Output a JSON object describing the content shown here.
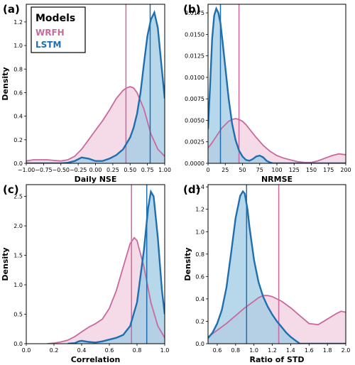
{
  "legend": {
    "title": "Models",
    "items": [
      {
        "label": "WRFH",
        "color": "#c9699d"
      },
      {
        "label": "LSTM",
        "color": "#1f6fae"
      }
    ],
    "placement": "top-left of panel (a)"
  },
  "colors": {
    "WRFH_line": "#c9699d",
    "WRFH_fill": "#f4d6e5",
    "LSTM_line": "#1f6fae",
    "LSTM_fill": "#9fcbe4"
  },
  "chart_data": [
    {
      "type": "area",
      "panel_label": "(a)",
      "xlabel": "Daily NSE",
      "ylabel": "Density",
      "xlim": [
        -1.0,
        1.0
      ],
      "ylim": [
        0,
        1.35
      ],
      "xticks": [
        -1.0,
        -0.75,
        -0.5,
        -0.25,
        0.0,
        0.25,
        0.5,
        0.75,
        1.0
      ],
      "xtick_labels": [
        "−1.00",
        "−0.75",
        "−0.50",
        "−0.25",
        "0.00",
        "0.25",
        "0.50",
        "0.75",
        "1.00"
      ],
      "yticks": [
        0.0,
        0.2,
        0.4,
        0.6,
        0.8,
        1.0,
        1.2
      ],
      "ytick_labels": [
        "0.0",
        "0.2",
        "0.4",
        "0.6",
        "0.8",
        "1.0",
        "1.2"
      ],
      "series": [
        {
          "name": "WRFH",
          "median": 0.44,
          "x": [
            -1.0,
            -0.9,
            -0.8,
            -0.7,
            -0.6,
            -0.5,
            -0.4,
            -0.3,
            -0.2,
            -0.1,
            0.0,
            0.1,
            0.2,
            0.3,
            0.4,
            0.45,
            0.5,
            0.55,
            0.6,
            0.7,
            0.8,
            0.9,
            1.0
          ],
          "y": [
            0.02,
            0.03,
            0.03,
            0.03,
            0.025,
            0.02,
            0.03,
            0.06,
            0.12,
            0.2,
            0.28,
            0.36,
            0.45,
            0.55,
            0.62,
            0.64,
            0.65,
            0.64,
            0.6,
            0.46,
            0.25,
            0.12,
            0.06
          ]
        },
        {
          "name": "LSTM",
          "median": 0.79,
          "x": [
            -1.0,
            -0.9,
            -0.8,
            -0.7,
            -0.6,
            -0.5,
            -0.4,
            -0.3,
            -0.2,
            -0.1,
            0.0,
            0.1,
            0.2,
            0.3,
            0.4,
            0.5,
            0.55,
            0.6,
            0.65,
            0.7,
            0.75,
            0.8,
            0.85,
            0.9,
            0.95,
            1.0
          ],
          "y": [
            0.0,
            0.0,
            0.0,
            0.0,
            0.0,
            0.0,
            0.005,
            0.02,
            0.05,
            0.04,
            0.02,
            0.02,
            0.04,
            0.07,
            0.12,
            0.22,
            0.3,
            0.42,
            0.6,
            0.85,
            1.08,
            1.22,
            1.28,
            1.15,
            0.85,
            0.55
          ]
        }
      ]
    },
    {
      "type": "area",
      "panel_label": "(b)",
      "xlabel": "NRMSE",
      "ylabel": "",
      "xlim": [
        0,
        200
      ],
      "ylim": [
        0,
        0.0185
      ],
      "xticks": [
        0,
        25,
        50,
        75,
        100,
        125,
        150,
        175,
        200
      ],
      "xtick_labels": [
        "0",
        "25",
        "50",
        "75",
        "100",
        "125",
        "150",
        "175",
        "200"
      ],
      "yticks": [
        0.0,
        0.0025,
        0.005,
        0.0075,
        0.01,
        0.0125,
        0.015,
        0.0175
      ],
      "ytick_labels": [
        "0.0000",
        "0.0025",
        "0.0050",
        "0.0075",
        "0.0100",
        "0.0125",
        "0.0150",
        "0.0175"
      ],
      "series": [
        {
          "name": "WRFH",
          "median": 45,
          "x": [
            0,
            5,
            10,
            15,
            20,
            25,
            30,
            35,
            40,
            45,
            50,
            55,
            60,
            70,
            80,
            90,
            100,
            110,
            120,
            130,
            140,
            150,
            160,
            170,
            180,
            190,
            200
          ],
          "y": [
            0.0018,
            0.0023,
            0.0029,
            0.0035,
            0.0041,
            0.0045,
            0.0049,
            0.0051,
            0.0052,
            0.0051,
            0.0049,
            0.0045,
            0.004,
            0.003,
            0.0021,
            0.0014,
            0.0009,
            0.0006,
            0.0004,
            0.0002,
            0.0001,
            0.0001,
            0.0003,
            0.0006,
            0.0009,
            0.0011,
            0.001
          ]
        },
        {
          "name": "LSTM",
          "median": 18,
          "x": [
            0,
            3,
            6,
            9,
            12,
            15,
            18,
            21,
            25,
            30,
            35,
            40,
            45,
            50,
            55,
            60,
            65,
            70,
            75,
            80,
            85,
            90,
            95,
            100,
            200
          ],
          "y": [
            0.004,
            0.009,
            0.0145,
            0.0172,
            0.018,
            0.0175,
            0.0163,
            0.0142,
            0.0112,
            0.0075,
            0.0046,
            0.0027,
            0.0015,
            0.0008,
            0.0004,
            0.0003,
            0.0005,
            0.0008,
            0.0009,
            0.0007,
            0.0003,
            0.0001,
            0.0,
            0.0,
            0.0
          ]
        }
      ]
    },
    {
      "type": "area",
      "panel_label": "(c)",
      "xlabel": "Correlation",
      "ylabel": "Density",
      "xlim": [
        0.0,
        1.0
      ],
      "ylim": [
        0,
        2.7
      ],
      "xticks": [
        0.0,
        0.2,
        0.4,
        0.6,
        0.8,
        1.0
      ],
      "xtick_labels": [
        "0.0",
        "0.2",
        "0.4",
        "0.6",
        "0.8",
        "1.0"
      ],
      "yticks": [
        0.0,
        0.5,
        1.0,
        1.5,
        2.0,
        2.5
      ],
      "ytick_labels": [
        "0.0",
        "0.5",
        "1.0",
        "1.5",
        "2.0",
        "2.5"
      ],
      "series": [
        {
          "name": "WRFH",
          "median": 0.76,
          "x": [
            0.15,
            0.2,
            0.25,
            0.3,
            0.35,
            0.4,
            0.45,
            0.5,
            0.55,
            0.6,
            0.65,
            0.7,
            0.75,
            0.78,
            0.8,
            0.85,
            0.9,
            0.95,
            1.0
          ],
          "y": [
            0.0,
            0.01,
            0.03,
            0.06,
            0.12,
            0.2,
            0.28,
            0.34,
            0.42,
            0.6,
            0.9,
            1.3,
            1.7,
            1.8,
            1.75,
            1.3,
            0.7,
            0.3,
            0.1
          ]
        },
        {
          "name": "LSTM",
          "median": 0.87,
          "x": [
            0.3,
            0.35,
            0.38,
            0.4,
            0.45,
            0.5,
            0.55,
            0.6,
            0.65,
            0.7,
            0.75,
            0.8,
            0.85,
            0.88,
            0.9,
            0.92,
            0.95,
            0.98,
            1.0
          ],
          "y": [
            0.0,
            0.01,
            0.04,
            0.05,
            0.03,
            0.02,
            0.04,
            0.07,
            0.1,
            0.15,
            0.3,
            0.7,
            1.6,
            2.3,
            2.58,
            2.5,
            1.8,
            0.9,
            0.5
          ]
        }
      ]
    },
    {
      "type": "area",
      "panel_label": "(d)",
      "xlabel": "Ratio of STD",
      "ylabel": "Density",
      "xlim": [
        0.5,
        2.0
      ],
      "ylim": [
        0,
        1.42
      ],
      "xticks": [
        0.6,
        0.8,
        1.0,
        1.2,
        1.4,
        1.6,
        1.8,
        2.0
      ],
      "xtick_labels": [
        "0.6",
        "0.8",
        "1.0",
        "1.2",
        "1.4",
        "1.6",
        "1.8",
        "2.0"
      ],
      "yticks": [
        0.0,
        0.2,
        0.4,
        0.6,
        0.8,
        1.0,
        1.2,
        1.4
      ],
      "ytick_labels": [
        "0.0",
        "0.2",
        "0.4",
        "0.6",
        "0.8",
        "1.0",
        "1.2",
        "1.4"
      ],
      "series": [
        {
          "name": "WRFH",
          "median": 1.27,
          "x": [
            0.5,
            0.6,
            0.7,
            0.8,
            0.9,
            1.0,
            1.05,
            1.1,
            1.15,
            1.2,
            1.3,
            1.4,
            1.5,
            1.6,
            1.7,
            1.8,
            1.9,
            1.95,
            2.0
          ],
          "y": [
            0.06,
            0.12,
            0.18,
            0.25,
            0.32,
            0.38,
            0.41,
            0.43,
            0.43,
            0.42,
            0.38,
            0.32,
            0.25,
            0.18,
            0.17,
            0.22,
            0.27,
            0.29,
            0.28
          ]
        },
        {
          "name": "LSTM",
          "median": 0.92,
          "x": [
            0.5,
            0.55,
            0.6,
            0.65,
            0.7,
            0.75,
            0.8,
            0.85,
            0.88,
            0.9,
            0.93,
            0.95,
            1.0,
            1.05,
            1.1,
            1.15,
            1.2,
            1.25,
            1.3,
            1.35,
            1.4,
            1.45,
            1.5,
            2.0
          ],
          "y": [
            0.05,
            0.1,
            0.18,
            0.3,
            0.5,
            0.8,
            1.12,
            1.32,
            1.36,
            1.34,
            1.2,
            1.05,
            0.75,
            0.55,
            0.42,
            0.33,
            0.26,
            0.2,
            0.15,
            0.1,
            0.06,
            0.03,
            0.0,
            0.0
          ]
        }
      ]
    }
  ]
}
